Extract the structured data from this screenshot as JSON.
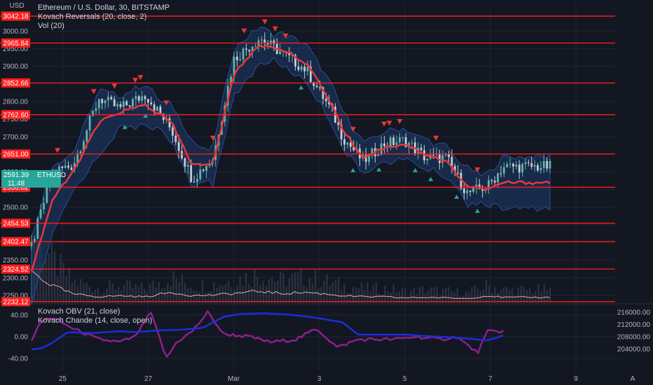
{
  "colors": {
    "background": "#131722",
    "grid": "#1f2433",
    "level_line": "#ff1f1f",
    "level_label_bg": "#ff1f1f",
    "ma_line": "#e5393e",
    "band_fill": "#1e3a6a",
    "candle_up": "#5fb5a8",
    "candle_down": "#c5ccd6",
    "volume_bar": "#2a3140",
    "vol_line": "#e7a9a0",
    "arrow_down": "#e53935",
    "arrow_up": "#26a69a",
    "obv_line": "#1c2ed6",
    "chande_line": "#8e1f8e",
    "current_price_bg": "#26a69a"
  },
  "legend": {
    "main_title": "Ethereum / U.S. Dollar, 30, BITSTAMP",
    "indicator_1": "Kovach Reversals (20, close, 2)",
    "indicator_2": "Vol (20)",
    "sub_indicator_1": "Kovach OBV (21, close)",
    "sub_indicator_2": "Kovach Chande (14, close, open)"
  },
  "axis": {
    "currency": "USD",
    "log_button": "A",
    "current_price": "2591.39",
    "current_symbol": "ETHUSD",
    "countdown": "11:48"
  },
  "chart_data": [
    {
      "type": "line",
      "title": "Ethereum / U.S. Dollar, 30, BITSTAMP",
      "x_labels": [
        "25",
        "27",
        "Mar",
        "3",
        "5",
        "7",
        "9"
      ],
      "y_ticks": [
        2250,
        2300,
        2350,
        2400,
        2450,
        2500,
        2550,
        2600,
        2650,
        2700,
        2750,
        2800,
        2850,
        2900,
        2950,
        3000
      ],
      "ylim": [
        2230,
        3080
      ],
      "levels": [
        3042.18,
        2965.84,
        2852.66,
        2762.6,
        2651.0,
        2556.82,
        2454.53,
        2402.47,
        2324.52,
        2232.12
      ],
      "close_series": {
        "t": [
          0,
          0.04,
          0.08,
          0.13,
          0.17,
          0.22,
          0.27,
          0.31,
          0.35,
          0.39,
          0.44,
          0.48,
          0.53,
          0.58,
          0.6,
          0.64,
          0.68,
          0.72,
          0.76,
          0.8,
          0.84,
          0.88,
          0.91
        ],
        "price": [
          2390,
          2600,
          2620,
          2810,
          2780,
          2820,
          2720,
          2580,
          2640,
          2920,
          2980,
          2940,
          2890,
          2770,
          2700,
          2630,
          2680,
          2690,
          2640,
          2640,
          2540,
          2560,
          2615
        ]
      },
      "ma_series": {
        "t": [
          0,
          0.04,
          0.08,
          0.13,
          0.17,
          0.22,
          0.27,
          0.31,
          0.35,
          0.39,
          0.44,
          0.48,
          0.53,
          0.58,
          0.6,
          0.64,
          0.68,
          0.72,
          0.76,
          0.8,
          0.84,
          0.88,
          0.91
        ],
        "price": [
          2320,
          2520,
          2600,
          2740,
          2770,
          2790,
          2740,
          2620,
          2620,
          2880,
          2960,
          2950,
          2910,
          2790,
          2720,
          2640,
          2670,
          2680,
          2650,
          2630,
          2560,
          2550,
          2570
        ]
      },
      "volume_line": {
        "t": [
          0,
          0.04,
          0.08,
          0.13,
          0.17,
          0.22,
          0.27,
          0.31,
          0.35,
          0.39,
          0.44,
          0.48,
          0.53,
          0.58,
          0.6,
          0.64,
          0.68,
          0.72,
          0.76,
          0.8,
          0.84,
          0.88,
          0.91
        ],
        "value": [
          5.5,
          3,
          1.5,
          1,
          1.2,
          1,
          1.8,
          1.2,
          1.3,
          1.6,
          2,
          1.6,
          1.8,
          1.4,
          1.2,
          1,
          1,
          0.8,
          0.9,
          0.8,
          0.7,
          1.2,
          0.9
        ]
      },
      "reversal_down_t": [
        0.05,
        0.12,
        0.16,
        0.2,
        0.21,
        0.26,
        0.35,
        0.41,
        0.45,
        0.47,
        0.49,
        0.62,
        0.68,
        0.69,
        0.71,
        0.78,
        0.86
      ],
      "reversal_up_t": [
        0.18,
        0.22,
        0.52,
        0.62,
        0.67,
        0.74,
        0.77,
        0.82,
        0.86
      ]
    },
    {
      "type": "line",
      "y_ticks_left": [
        40,
        0,
        -40
      ],
      "y_ticks_right": [
        216000,
        212000,
        208000,
        204000
      ],
      "series": [
        {
          "name": "Kovach OBV (21, close)",
          "t": [
            0,
            0.02,
            0.04,
            0.07,
            0.12,
            0.17,
            0.2,
            0.25,
            0.29,
            0.33,
            0.37,
            0.4,
            0.45,
            0.5,
            0.55,
            0.6,
            0.63,
            0.68,
            0.72,
            0.76,
            0.8,
            0.84,
            0.88,
            0.91
          ],
          "value": [
            203800,
            204200,
            206000,
            209500,
            209200,
            209800,
            209500,
            210100,
            210300,
            210900,
            214500,
            215400,
            215700,
            215200,
            214200,
            212700,
            208700,
            208700,
            208700,
            208200,
            207900,
            207400,
            206800,
            208400
          ]
        },
        {
          "name": "Kovach Chande (14, close, open)",
          "t": [
            0,
            0.02,
            0.04,
            0.08,
            0.13,
            0.17,
            0.2,
            0.23,
            0.26,
            0.28,
            0.31,
            0.34,
            0.37,
            0.42,
            0.46,
            0.51,
            0.55,
            0.59,
            0.63,
            0.67,
            0.7,
            0.74,
            0.79,
            0.82,
            0.86,
            0.88,
            0.91
          ],
          "value": [
            -5,
            30,
            35,
            15,
            -5,
            -10,
            0,
            45,
            -40,
            -10,
            10,
            45,
            5,
            0,
            -10,
            -5,
            15,
            -20,
            -5,
            -5,
            -5,
            0,
            -5,
            0,
            -30,
            10,
            10
          ]
        }
      ]
    }
  ]
}
